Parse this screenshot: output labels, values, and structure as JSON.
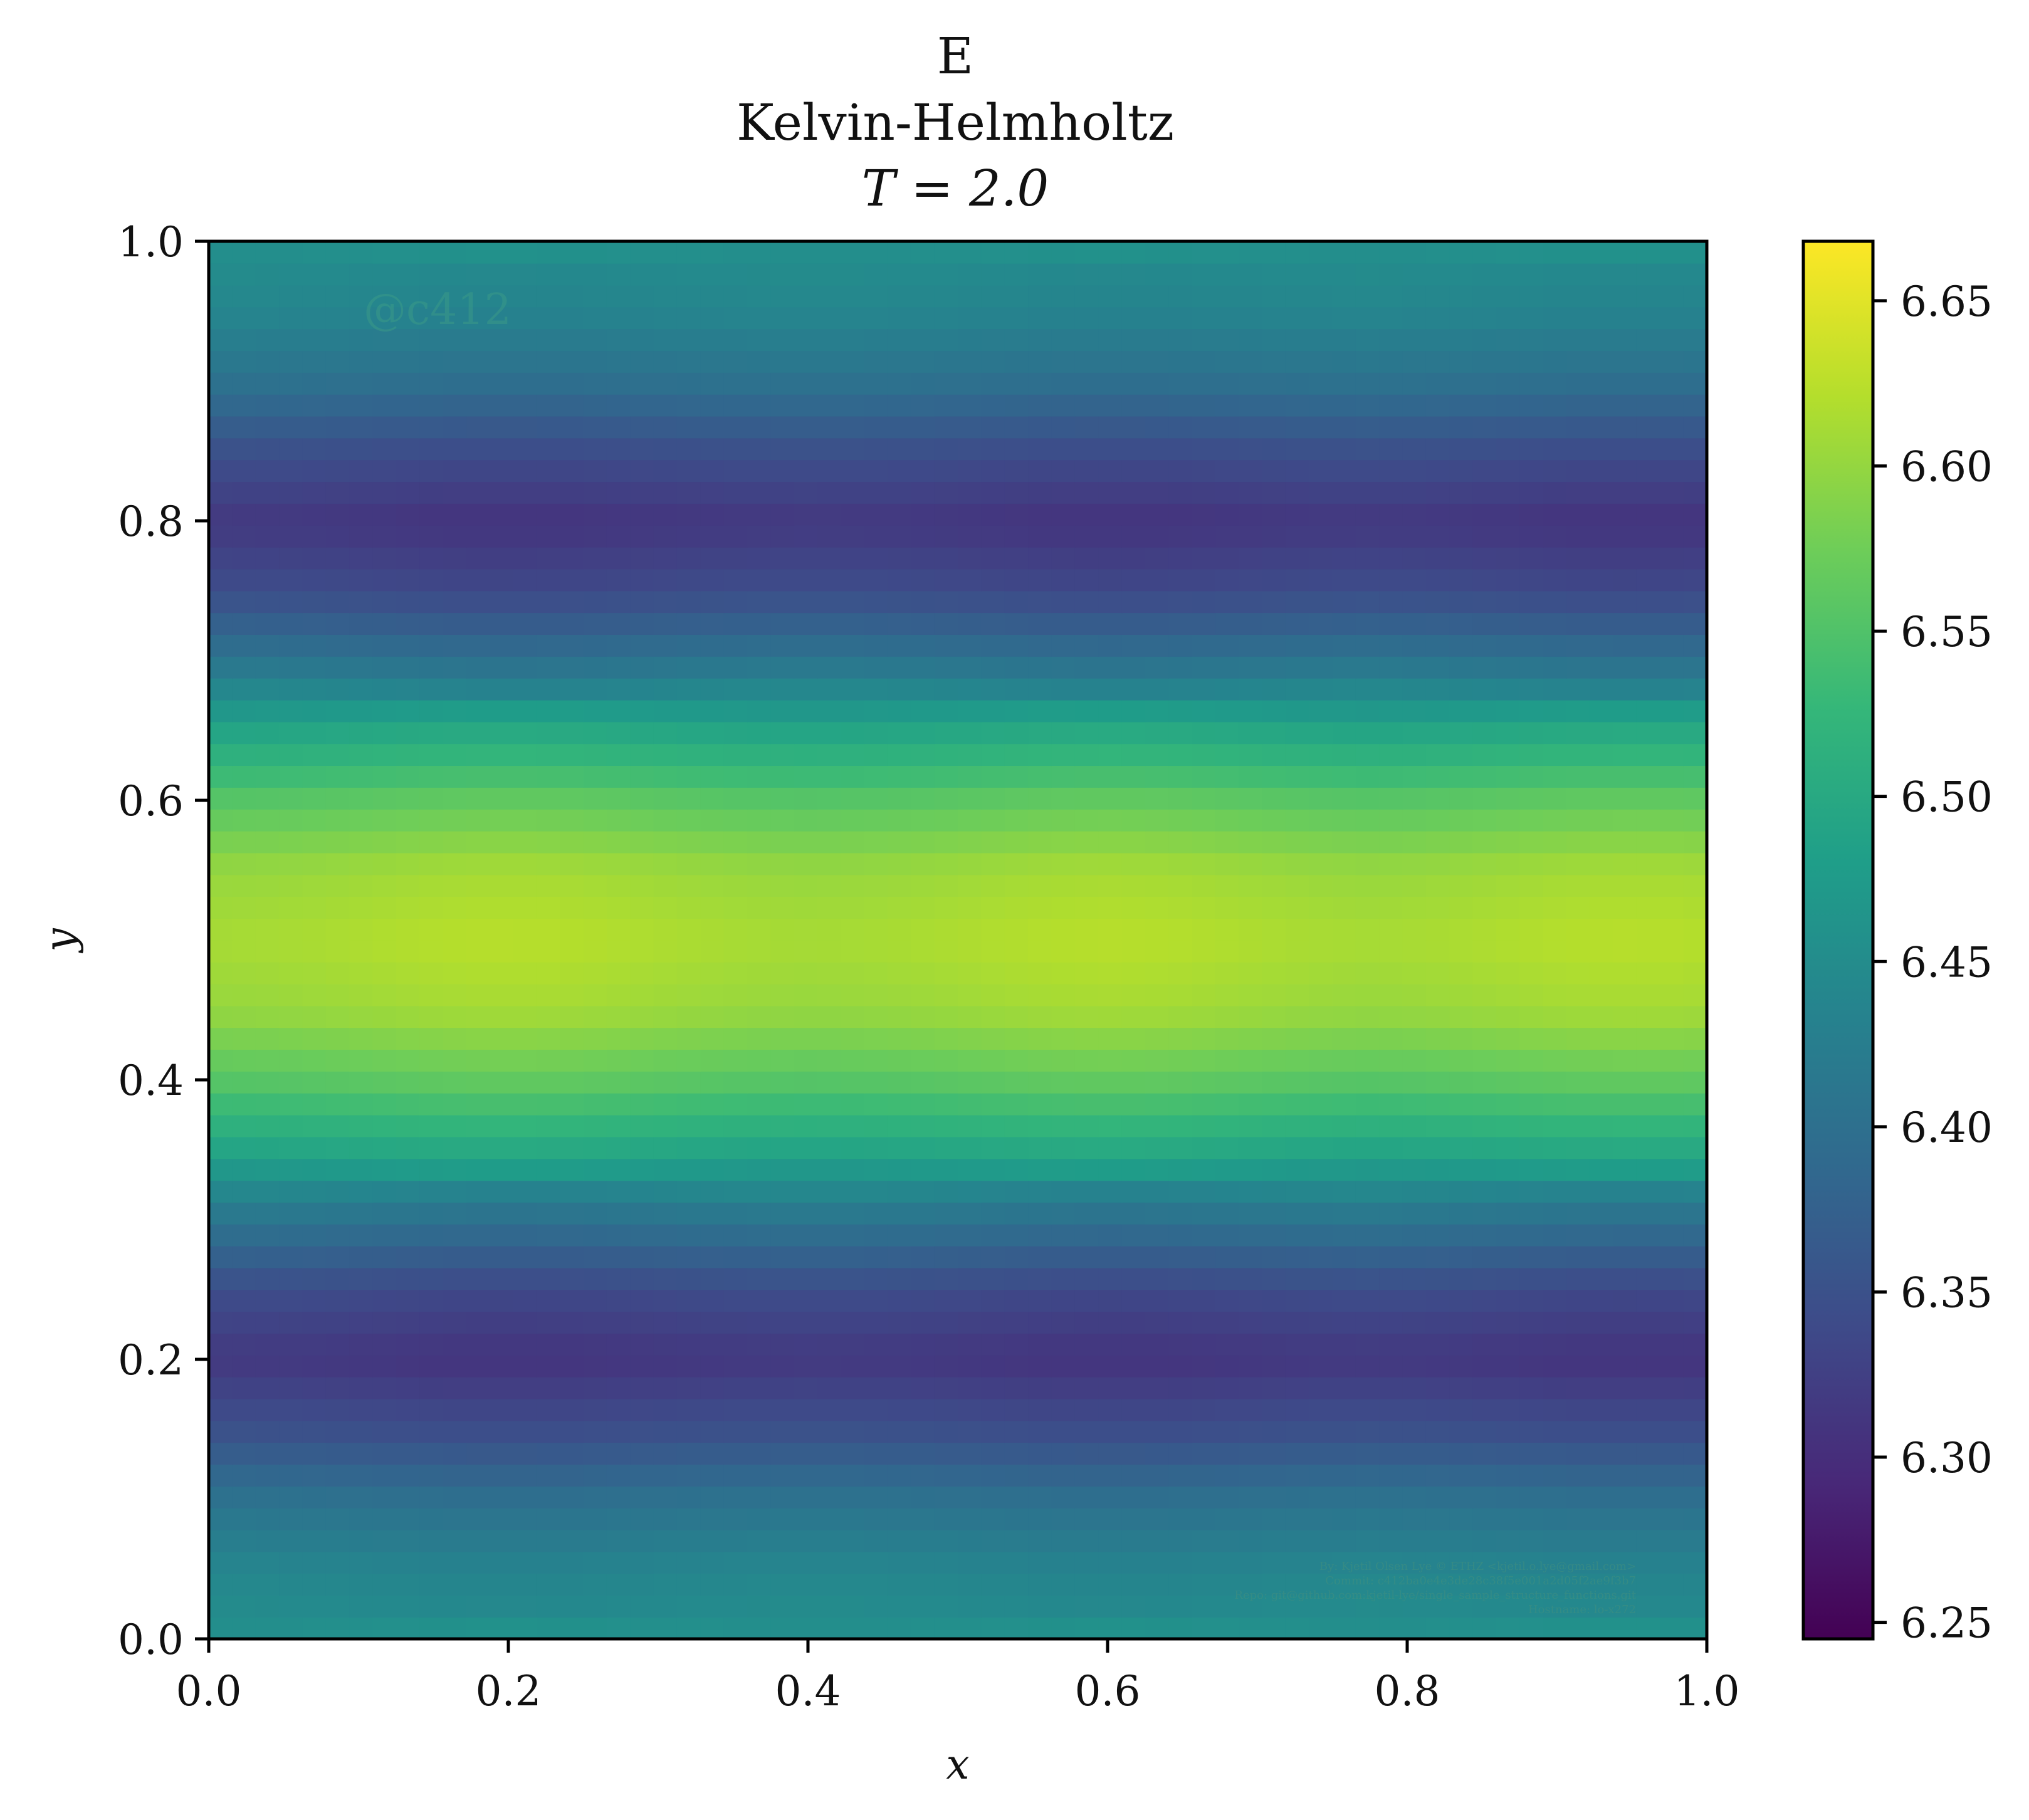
{
  "chart_data": {
    "type": "heatmap",
    "title_lines": [
      "E",
      "Kelvin-Helmholtz",
      "T = 2.0"
    ],
    "xlabel": "x",
    "ylabel": "y",
    "xlim": [
      0.0,
      1.0
    ],
    "ylim": [
      0.0,
      1.0
    ],
    "x_ticks": [
      "0.0",
      "0.2",
      "0.4",
      "0.6",
      "0.8",
      "1.0"
    ],
    "y_ticks": [
      "0.0",
      "0.2",
      "0.4",
      "0.6",
      "0.8",
      "1.0"
    ],
    "colormap": "viridis",
    "colorbar": {
      "range": [
        6.245,
        6.668
      ],
      "ticks": [
        "6.25",
        "6.30",
        "6.35",
        "6.40",
        "6.45",
        "6.50",
        "6.55",
        "6.60",
        "6.65"
      ]
    },
    "field_profile_y": [
      0.0,
      0.05,
      0.1,
      0.15,
      0.2,
      0.25,
      0.3,
      0.35,
      0.4,
      0.45,
      0.5,
      0.55,
      0.6,
      0.65,
      0.7,
      0.75,
      0.8,
      0.85,
      0.9,
      0.95,
      1.0
    ],
    "field_profile_E": [
      6.455,
      6.44,
      6.405,
      6.35,
      6.315,
      6.345,
      6.41,
      6.49,
      6.555,
      6.6,
      6.612,
      6.6,
      6.555,
      6.49,
      6.41,
      6.345,
      6.315,
      6.35,
      6.405,
      6.44,
      6.455
    ],
    "x_modulation": {
      "amplitude": 0.012,
      "peaks_x": [
        0.2,
        0.6,
        0.95
      ]
    },
    "watermark": "@c412",
    "footer_lines": [
      "By: Kjetil Olsen Lye © ETHZ <kjetil.o.lye@gmail.com>",
      "Commit: c412ba0e4e3de28c38f5e001a2d05f2ae9f3b7",
      "Repo: git@github.com:kjetil-lye/single_sample_structure_functions.git",
      "Hostname: lo-x272"
    ]
  }
}
